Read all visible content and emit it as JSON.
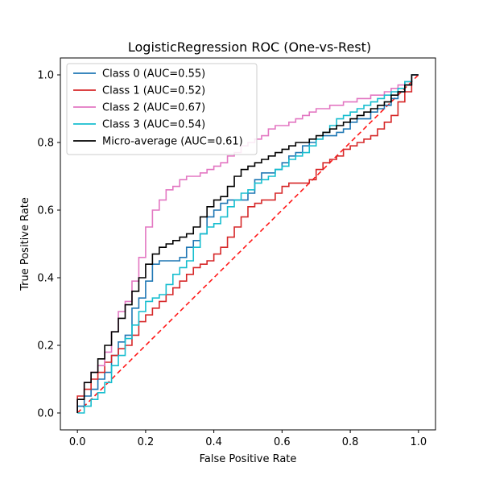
{
  "chart_data": {
    "type": "line",
    "title": "LogisticRegression ROC (One-vs-Rest)",
    "xlabel": "False Positive Rate",
    "ylabel": "True Positive Rate",
    "xlim": [
      -0.05,
      1.05
    ],
    "ylim": [
      -0.05,
      1.05
    ],
    "xticks": [
      "0.0",
      "0.2",
      "0.4",
      "0.6",
      "0.8",
      "1.0"
    ],
    "yticks": [
      "0.0",
      "0.2",
      "0.4",
      "0.6",
      "0.8",
      "1.0"
    ],
    "grid": false,
    "legend_position": "top-left",
    "series": [
      {
        "name": "Class 0 (AUC=0.55)",
        "color": "#1f77b4",
        "x": [
          0.0,
          0.02,
          0.04,
          0.06,
          0.08,
          0.1,
          0.12,
          0.14,
          0.16,
          0.18,
          0.2,
          0.22,
          0.24,
          0.26,
          0.28,
          0.3,
          0.32,
          0.34,
          0.36,
          0.38,
          0.4,
          0.42,
          0.44,
          0.46,
          0.48,
          0.5,
          0.52,
          0.54,
          0.56,
          0.58,
          0.6,
          0.62,
          0.64,
          0.66,
          0.68,
          0.7,
          0.72,
          0.74,
          0.76,
          0.78,
          0.8,
          0.82,
          0.84,
          0.86,
          0.88,
          0.9,
          0.92,
          0.94,
          0.96,
          0.98,
          1.0
        ],
        "y": [
          0.0,
          0.02,
          0.05,
          0.07,
          0.1,
          0.12,
          0.17,
          0.21,
          0.23,
          0.31,
          0.34,
          0.39,
          0.44,
          0.45,
          0.45,
          0.45,
          0.46,
          0.49,
          0.51,
          0.53,
          0.58,
          0.6,
          0.62,
          0.63,
          0.63,
          0.63,
          0.65,
          0.69,
          0.71,
          0.71,
          0.72,
          0.74,
          0.76,
          0.77,
          0.79,
          0.8,
          0.81,
          0.82,
          0.82,
          0.83,
          0.84,
          0.86,
          0.87,
          0.87,
          0.89,
          0.9,
          0.91,
          0.93,
          0.95,
          0.97,
          1.0
        ]
      },
      {
        "name": "Class 1 (AUC=0.52)",
        "color": "#d62728",
        "x": [
          0.0,
          0.02,
          0.04,
          0.06,
          0.08,
          0.1,
          0.12,
          0.14,
          0.16,
          0.18,
          0.2,
          0.22,
          0.24,
          0.26,
          0.28,
          0.3,
          0.32,
          0.34,
          0.36,
          0.38,
          0.4,
          0.42,
          0.44,
          0.46,
          0.48,
          0.5,
          0.52,
          0.54,
          0.56,
          0.58,
          0.6,
          0.62,
          0.64,
          0.66,
          0.68,
          0.7,
          0.72,
          0.74,
          0.76,
          0.78,
          0.8,
          0.82,
          0.84,
          0.86,
          0.88,
          0.9,
          0.92,
          0.94,
          0.96,
          0.98,
          1.0
        ],
        "y": [
          0.0,
          0.05,
          0.07,
          0.1,
          0.12,
          0.15,
          0.17,
          0.19,
          0.2,
          0.23,
          0.27,
          0.29,
          0.31,
          0.33,
          0.35,
          0.37,
          0.39,
          0.41,
          0.43,
          0.44,
          0.45,
          0.47,
          0.49,
          0.52,
          0.55,
          0.58,
          0.61,
          0.62,
          0.63,
          0.63,
          0.65,
          0.67,
          0.68,
          0.68,
          0.68,
          0.69,
          0.72,
          0.74,
          0.75,
          0.76,
          0.78,
          0.79,
          0.8,
          0.81,
          0.82,
          0.84,
          0.86,
          0.88,
          0.92,
          0.95,
          1.0
        ]
      },
      {
        "name": "Class 2 (AUC=0.67)",
        "color": "#e377c2",
        "x": [
          0.0,
          0.02,
          0.04,
          0.06,
          0.08,
          0.1,
          0.12,
          0.14,
          0.16,
          0.18,
          0.2,
          0.22,
          0.24,
          0.26,
          0.28,
          0.3,
          0.32,
          0.34,
          0.36,
          0.38,
          0.4,
          0.42,
          0.44,
          0.46,
          0.48,
          0.5,
          0.52,
          0.54,
          0.56,
          0.58,
          0.6,
          0.62,
          0.64,
          0.66,
          0.68,
          0.7,
          0.72,
          0.74,
          0.76,
          0.78,
          0.8,
          0.82,
          0.84,
          0.86,
          0.88,
          0.9,
          0.92,
          0.94,
          0.96,
          0.98,
          1.0
        ],
        "y": [
          0.0,
          0.04,
          0.09,
          0.12,
          0.14,
          0.18,
          0.24,
          0.3,
          0.33,
          0.39,
          0.46,
          0.55,
          0.6,
          0.63,
          0.66,
          0.67,
          0.69,
          0.7,
          0.7,
          0.71,
          0.72,
          0.73,
          0.74,
          0.76,
          0.77,
          0.79,
          0.8,
          0.81,
          0.82,
          0.84,
          0.85,
          0.85,
          0.86,
          0.87,
          0.88,
          0.89,
          0.9,
          0.9,
          0.91,
          0.91,
          0.92,
          0.92,
          0.93,
          0.93,
          0.94,
          0.94,
          0.95,
          0.96,
          0.97,
          0.98,
          1.0
        ]
      },
      {
        "name": "Class 3 (AUC=0.54)",
        "color": "#17becf",
        "x": [
          0.0,
          0.02,
          0.04,
          0.06,
          0.08,
          0.1,
          0.12,
          0.14,
          0.16,
          0.18,
          0.2,
          0.22,
          0.24,
          0.26,
          0.28,
          0.3,
          0.32,
          0.34,
          0.36,
          0.38,
          0.4,
          0.42,
          0.44,
          0.46,
          0.48,
          0.5,
          0.52,
          0.54,
          0.56,
          0.58,
          0.6,
          0.62,
          0.64,
          0.66,
          0.68,
          0.7,
          0.72,
          0.74,
          0.76,
          0.78,
          0.8,
          0.82,
          0.84,
          0.86,
          0.88,
          0.9,
          0.92,
          0.94,
          0.96,
          0.98,
          1.0
        ],
        "y": [
          0.0,
          0.0,
          0.02,
          0.04,
          0.06,
          0.09,
          0.14,
          0.17,
          0.22,
          0.26,
          0.3,
          0.33,
          0.34,
          0.35,
          0.38,
          0.41,
          0.43,
          0.45,
          0.49,
          0.53,
          0.55,
          0.56,
          0.58,
          0.61,
          0.63,
          0.65,
          0.66,
          0.68,
          0.69,
          0.7,
          0.72,
          0.73,
          0.75,
          0.76,
          0.77,
          0.79,
          0.81,
          0.83,
          0.85,
          0.87,
          0.88,
          0.89,
          0.9,
          0.91,
          0.92,
          0.93,
          0.94,
          0.95,
          0.96,
          0.98,
          1.0
        ]
      },
      {
        "name": "Micro-average (AUC=0.61)",
        "color": "#000000",
        "x": [
          0.0,
          0.02,
          0.04,
          0.06,
          0.08,
          0.1,
          0.12,
          0.14,
          0.16,
          0.18,
          0.2,
          0.22,
          0.24,
          0.26,
          0.28,
          0.3,
          0.32,
          0.34,
          0.36,
          0.38,
          0.4,
          0.42,
          0.44,
          0.46,
          0.48,
          0.5,
          0.52,
          0.54,
          0.56,
          0.58,
          0.6,
          0.62,
          0.64,
          0.66,
          0.68,
          0.7,
          0.72,
          0.74,
          0.76,
          0.78,
          0.8,
          0.82,
          0.84,
          0.86,
          0.88,
          0.9,
          0.92,
          0.94,
          0.96,
          0.98,
          1.0
        ],
        "y": [
          0.0,
          0.04,
          0.09,
          0.12,
          0.16,
          0.2,
          0.24,
          0.28,
          0.32,
          0.36,
          0.4,
          0.44,
          0.47,
          0.49,
          0.5,
          0.51,
          0.52,
          0.53,
          0.55,
          0.58,
          0.61,
          0.63,
          0.64,
          0.67,
          0.7,
          0.72,
          0.73,
          0.74,
          0.75,
          0.76,
          0.77,
          0.78,
          0.79,
          0.8,
          0.8,
          0.81,
          0.82,
          0.83,
          0.84,
          0.85,
          0.86,
          0.87,
          0.88,
          0.89,
          0.9,
          0.91,
          0.92,
          0.94,
          0.95,
          0.97,
          1.0
        ]
      }
    ],
    "reference_line": {
      "color": "#ff1a1a",
      "style": "dashed",
      "x": [
        0,
        1
      ],
      "y": [
        0,
        1
      ]
    }
  }
}
